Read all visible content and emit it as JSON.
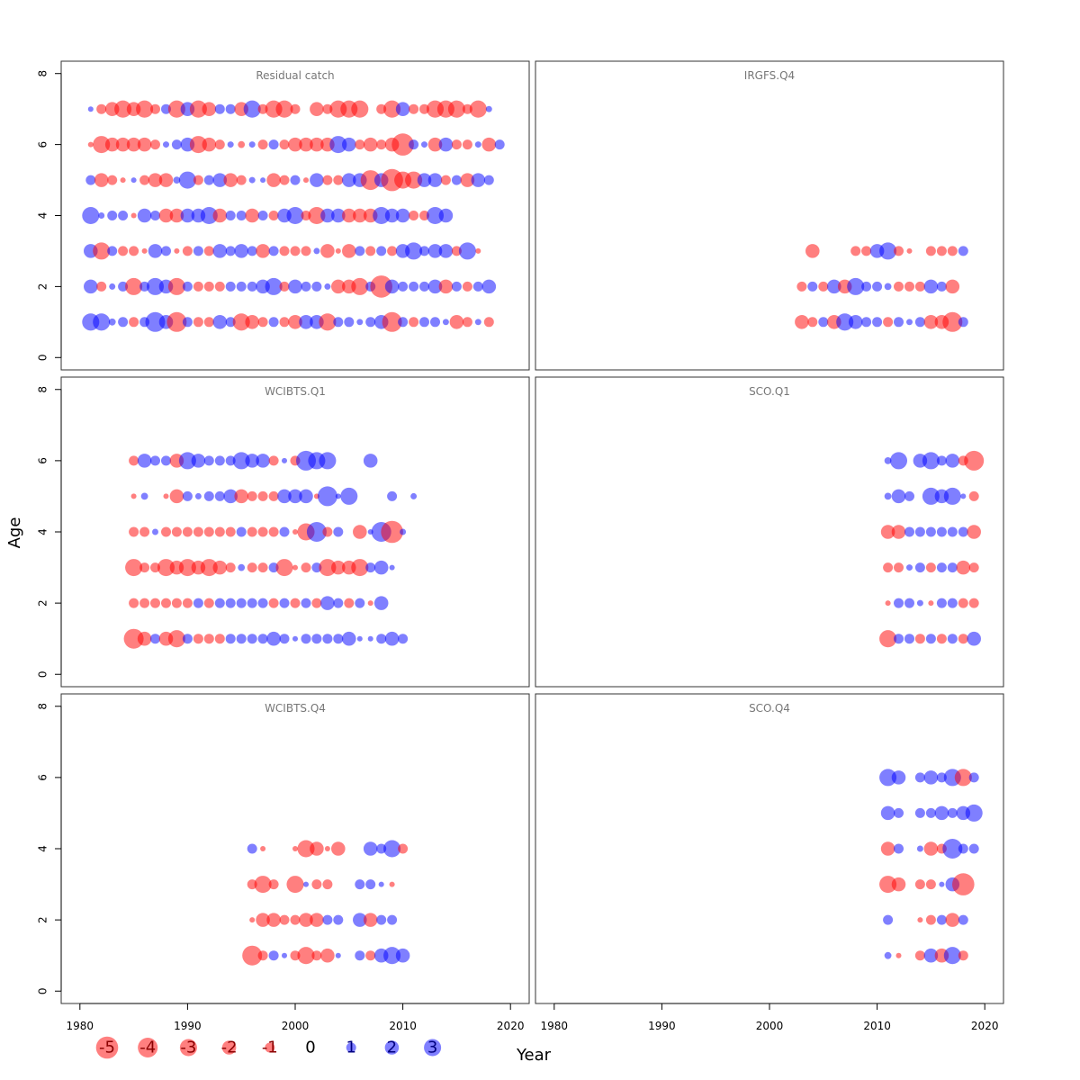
{
  "chart_data": {
    "type": "scatter",
    "xlabel": "Year",
    "ylabel": "Age",
    "xlim": [
      1980,
      2020
    ],
    "ylim": [
      0,
      8
    ],
    "x_ticks": [
      1980,
      1990,
      2000,
      2010,
      2020
    ],
    "y_ticks": [
      0,
      2,
      4,
      6,
      8
    ],
    "colors": {
      "positive": "#0000ff",
      "negative": "#ff0000",
      "alpha": 0.5
    },
    "legend": {
      "placement": "bottom-left",
      "entries": [
        {
          "label": "-5",
          "value": -5
        },
        {
          "label": "-4",
          "value": -4
        },
        {
          "label": "-3",
          "value": -3
        },
        {
          "label": "-2",
          "value": -2
        },
        {
          "label": "-1",
          "value": -1
        },
        {
          "label": "0",
          "value": 0
        },
        {
          "label": "1",
          "value": 1
        },
        {
          "label": "2",
          "value": 2
        },
        {
          "label": "3",
          "value": 3
        }
      ]
    },
    "panels": [
      {
        "title": "Residual catch",
        "ages": [
          {
            "age": 7,
            "start": 1981,
            "r": [
              0.3,
              -1,
              -2,
              -3,
              -2,
              -3,
              -1,
              1,
              -3,
              2,
              -3,
              -2,
              1,
              1,
              -2,
              3,
              -1,
              -3,
              -3,
              -1,
              0,
              -2,
              -1,
              -3,
              -3,
              -3,
              0,
              -1,
              -3,
              2,
              -1,
              -1,
              -3,
              -3,
              -3,
              -1,
              -3,
              0.4
            ]
          },
          {
            "age": 6,
            "start": 1981,
            "r": [
              -0.3,
              -3,
              -2,
              -2,
              -2,
              -2,
              -1,
              0.4,
              1,
              2,
              -3,
              -2,
              -1,
              0.4,
              -0.5,
              0.4,
              -1,
              1,
              -1,
              -2,
              -2,
              -2,
              -2,
              3,
              2,
              -1,
              -2,
              -1,
              -2,
              -5,
              1,
              0.4,
              -2,
              2,
              -1,
              -1,
              0.4,
              -2,
              1
            ]
          },
          {
            "age": 5,
            "start": 1981,
            "r": [
              1,
              -2,
              -1,
              -0.3,
              0.3,
              -1,
              -2,
              -2,
              0.5,
              3,
              -1,
              1,
              2,
              -2,
              -1,
              0.4,
              0.3,
              -2,
              -1,
              1,
              -0.3,
              2,
              -1,
              -1,
              2,
              2,
              -4,
              2,
              -5,
              -3,
              -3,
              2,
              2,
              -1,
              1,
              -2,
              2,
              1
            ]
          },
          {
            "age": 4,
            "start": 1981,
            "r": [
              3,
              0.4,
              1,
              1,
              -0.3,
              2,
              1,
              -2,
              -2,
              2,
              2,
              3,
              -2,
              1,
              1,
              -2,
              1,
              -1,
              2,
              3,
              -1,
              -3,
              2,
              2,
              -2,
              -2,
              -2,
              3,
              2,
              2,
              -1,
              -1,
              3,
              2
            ]
          },
          {
            "age": 3,
            "start": 1981,
            "r": [
              2,
              -3,
              1,
              -1,
              -1,
              -0.3,
              2,
              1,
              -0.3,
              -1,
              1,
              -1,
              2,
              1,
              2,
              1,
              -2,
              1,
              -1,
              -1,
              -1,
              0.4,
              -2,
              -0.3,
              -2,
              1,
              -1,
              1,
              -1,
              2,
              3,
              1,
              2,
              2,
              -1,
              3,
              -0.3
            ]
          },
          {
            "age": 2,
            "start": 1981,
            "r": [
              2,
              -1,
              0.4,
              1,
              -3,
              1,
              3,
              2,
              -3,
              1,
              -1,
              -1,
              -1,
              1,
              1,
              1,
              2,
              3,
              -1,
              2,
              1,
              1,
              0.4,
              -2,
              -2,
              -3,
              1,
              -5,
              2,
              1,
              1,
              1,
              2,
              -2,
              1,
              -1,
              1,
              2
            ]
          },
          {
            "age": 1,
            "start": 1981,
            "r": [
              3,
              3,
              0.5,
              1,
              -1,
              1,
              4,
              2,
              -4,
              1,
              -1,
              -1,
              2,
              1,
              -3,
              -2,
              -1,
              1,
              -1,
              -2,
              2,
              2,
              -3,
              1,
              1,
              0.4,
              1,
              2,
              -4,
              1,
              -1,
              1,
              1,
              0.4,
              -2,
              -1,
              0.4,
              -1
            ]
          }
        ]
      },
      {
        "title": "IRGFS.Q4",
        "ages": [
          {
            "age": 3,
            "start": 2004,
            "r": [
              -2,
              0,
              0,
              0,
              -1,
              -1,
              2,
              3,
              -1,
              -0.3,
              0,
              -1,
              -1,
              -1,
              1
            ]
          },
          {
            "age": 2,
            "start": 2003,
            "r": [
              -1,
              1,
              -1,
              2,
              -2,
              3,
              1,
              1,
              0.5,
              -1,
              -1,
              -1,
              2,
              1,
              -2
            ]
          },
          {
            "age": 1,
            "start": 2003,
            "r": [
              -2,
              -1,
              1,
              -2,
              3,
              2,
              1,
              1,
              -1,
              1,
              0.4,
              1,
              -2,
              -2,
              -4,
              1
            ]
          }
        ]
      },
      {
        "title": "WCIBTS.Q1",
        "ages": [
          {
            "age": 6,
            "start": 1985,
            "r": [
              -1,
              2,
              1,
              1,
              -2,
              3,
              2,
              1,
              1,
              1,
              3,
              2,
              2,
              -1,
              0.3,
              -1,
              4,
              3,
              3,
              0,
              0,
              0,
              2
            ]
          },
          {
            "age": 5,
            "start": 1985,
            "r": [
              -0.3,
              0.5,
              0,
              -0.3,
              -2,
              1,
              0.4,
              1,
              1,
              2,
              -2,
              -1,
              -1,
              -1,
              2,
              2,
              2,
              -0.3,
              4,
              0.3,
              3,
              0,
              0,
              0,
              1,
              0,
              0.4
            ]
          },
          {
            "age": 4,
            "start": 1985,
            "r": [
              -1,
              -1,
              0.4,
              -1,
              -1,
              -1,
              -1,
              -1,
              -1,
              -1,
              1,
              -1,
              -1,
              -1,
              1,
              -0.3,
              -3,
              4,
              -1,
              1,
              0,
              -2,
              0.3,
              4,
              -5,
              0.4
            ]
          },
          {
            "age": 3,
            "start": 1985,
            "r": [
              -3,
              -1,
              -1,
              -3,
              -2,
              -3,
              -2,
              -3,
              -2,
              -1,
              0.5,
              -1,
              -1,
              1,
              -3,
              -0.3,
              -1,
              1,
              -3,
              -2,
              -2,
              -3,
              1,
              2,
              0.3
            ]
          },
          {
            "age": 2,
            "start": 1985,
            "r": [
              -1,
              -1,
              -1,
              -1,
              -1,
              -1,
              1,
              -1,
              1,
              1,
              1,
              1,
              1,
              -1,
              1,
              -1,
              1,
              -1,
              2,
              1,
              -1,
              1,
              -0.3,
              2
            ]
          },
          {
            "age": 1,
            "start": 1985,
            "r": [
              -4,
              -2,
              1,
              -2,
              -3,
              1,
              -1,
              -1,
              -1,
              1,
              1,
              1,
              1,
              2,
              1,
              0.3,
              1,
              1,
              1,
              1,
              2,
              0.3,
              0.3,
              1,
              2,
              1
            ]
          }
        ]
      },
      {
        "title": "SCO.Q1",
        "ages": [
          {
            "age": 6,
            "start": 2011,
            "r": [
              0.5,
              3,
              0,
              2,
              3,
              1,
              2,
              -1,
              -4
            ]
          },
          {
            "age": 5,
            "start": 2011,
            "r": [
              0.5,
              2,
              1,
              0,
              3,
              2,
              3,
              0.3,
              -1
            ]
          },
          {
            "age": 4,
            "start": 2011,
            "r": [
              -2,
              -2,
              1,
              1,
              1,
              1,
              1,
              1,
              -2
            ]
          },
          {
            "age": 3,
            "start": 2011,
            "r": [
              -1,
              -1,
              0.4,
              1,
              -1,
              1,
              1,
              -2,
              -1
            ]
          },
          {
            "age": 2,
            "start": 2011,
            "r": [
              -0.3,
              1,
              1,
              0.4,
              -0.3,
              1,
              1,
              -1,
              -1
            ]
          },
          {
            "age": 1,
            "start": 2011,
            "r": [
              -3,
              1,
              1,
              -1,
              1,
              -1,
              1,
              -1,
              2
            ]
          }
        ]
      },
      {
        "title": "WCIBTS.Q4",
        "ages": [
          {
            "age": 4,
            "start": 1996,
            "r": [
              1,
              -0.3,
              0,
              0,
              -0.3,
              -3,
              -2,
              -0.3,
              -2,
              0,
              0,
              2,
              1,
              3,
              -1
            ]
          },
          {
            "age": 3,
            "start": 1996,
            "r": [
              -1,
              -3,
              -1,
              0,
              -3,
              0.3,
              -1,
              -1,
              0,
              0,
              1,
              1,
              0.3,
              -0.3
            ]
          },
          {
            "age": 2,
            "start": 1996,
            "r": [
              -0.3,
              -2,
              -2,
              -1,
              -1,
              -2,
              -2,
              1,
              1,
              0,
              2,
              -2,
              1,
              1
            ]
          },
          {
            "age": 1,
            "start": 1996,
            "r": [
              -4,
              -1,
              1,
              0.3,
              -1,
              -3,
              -1,
              -2,
              0.3,
              0,
              1,
              -1,
              2,
              3,
              2
            ]
          }
        ]
      },
      {
        "title": "SCO.Q4",
        "ages": [
          {
            "age": 6,
            "start": 2011,
            "r": [
              3,
              2,
              0,
              1,
              2,
              1,
              3,
              -3,
              1
            ]
          },
          {
            "age": 5,
            "start": 2011,
            "r": [
              2,
              1,
              0,
              1,
              1,
              2,
              1,
              2,
              3
            ]
          },
          {
            "age": 4,
            "start": 2011,
            "r": [
              -2,
              1,
              0,
              0.4,
              -2,
              -1,
              4,
              1,
              1
            ]
          },
          {
            "age": 3,
            "start": 2011,
            "r": [
              -3,
              -2,
              0,
              -1,
              -1,
              0.3,
              2,
              -5
            ]
          },
          {
            "age": 2,
            "start": 2011,
            "r": [
              1,
              0,
              0,
              -0.3,
              -1,
              1,
              -2,
              1
            ]
          },
          {
            "age": 1,
            "start": 2011,
            "r": [
              0.5,
              -0.3,
              0,
              -1,
              2,
              -2,
              3,
              -1
            ]
          }
        ]
      }
    ]
  }
}
